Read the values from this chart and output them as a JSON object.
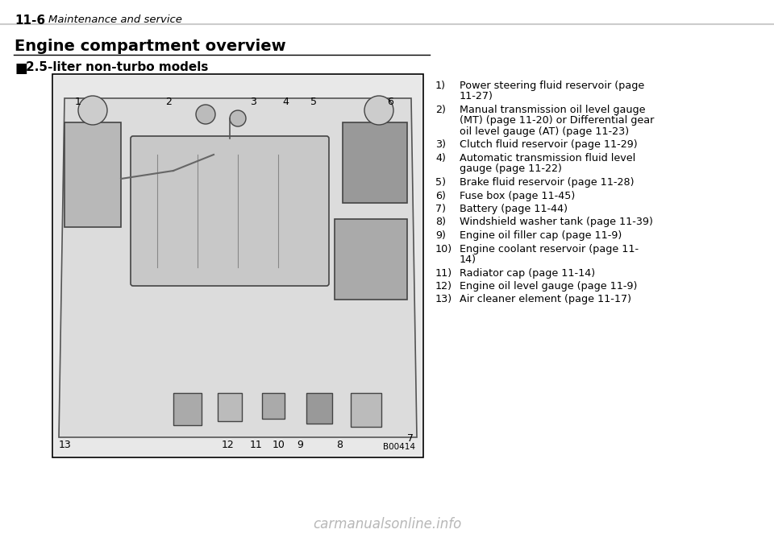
{
  "page_bg": "#ffffff",
  "header_text": "11-6",
  "header_sub": "Maintenance and service",
  "header_line_color": "#cccccc",
  "section_title": "Engine compartment overview",
  "section_title_line": true,
  "subsection_marker": "■",
  "subsection_title": "2.5-liter non-turbo models",
  "image_placeholder_border": "#000000",
  "image_code": "B00414",
  "items": [
    {
      "num": "1)",
      "text": "Power steering fluid reservoir (page\n11-27)"
    },
    {
      "num": "2)",
      "text": "Manual transmission oil level gauge\n(MT) (page 11-20) or Differential gear\noil level gauge (AT) (page 11-23)"
    },
    {
      "num": "3)",
      "text": "Clutch fluid reservoir (page 11-29)"
    },
    {
      "num": "4)",
      "text": "Automatic transmission fluid level\ngauge (page 11-22)"
    },
    {
      "num": "5)",
      "text": "Brake fluid reservoir (page 11-28)"
    },
    {
      "num": "6)",
      "text": "Fuse box (page 11-45)"
    },
    {
      "num": "7)",
      "text": "Battery (page 11-44)"
    },
    {
      "num": "8)",
      "text": "Windshield washer tank (page 11-39)"
    },
    {
      "num": "9)",
      "text": "Engine oil filler cap (page 11-9)"
    },
    {
      "num": "10)",
      "text": "Engine coolant reservoir (page 11-\n14)"
    },
    {
      "num": "11)",
      "text": "Radiator cap (page 11-14)"
    },
    {
      "num": "12)",
      "text": "Engine oil level gauge (page 11-9)"
    },
    {
      "num": "13)",
      "text": "Air cleaner element (page 11-17)"
    }
  ],
  "watermark_text": "carmanualsonline.info",
  "watermark_color": "#888888"
}
